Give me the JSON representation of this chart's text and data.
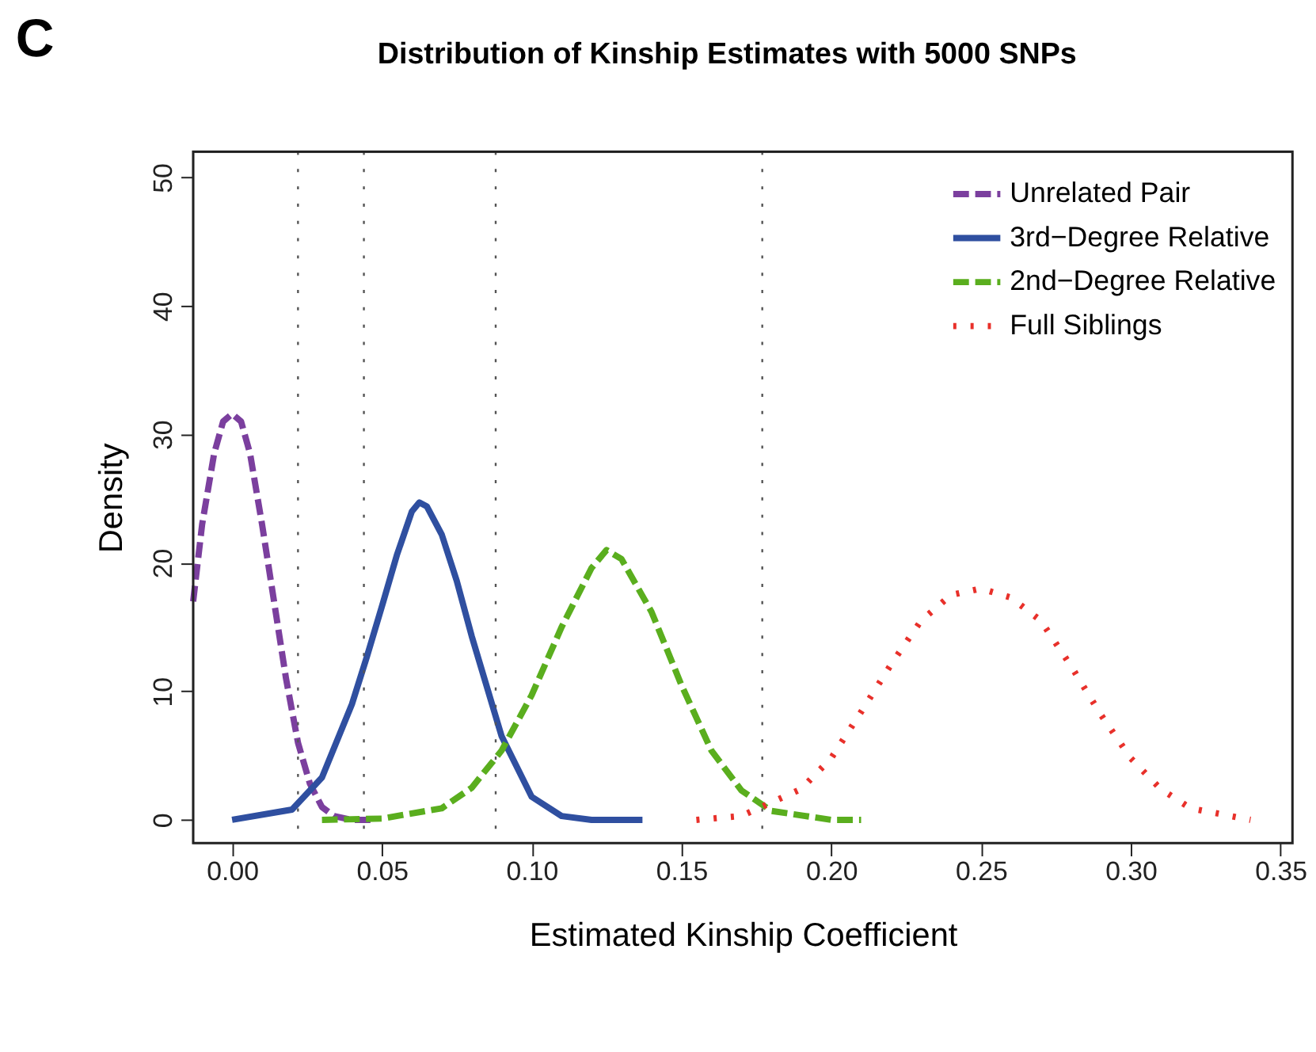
{
  "chart_data": {
    "type": "line",
    "title": "Distribution of Kinship Estimates with 5000 SNPs",
    "xlabel": "Estimated Kinship Coefficient",
    "ylabel": "Density",
    "annotations": [
      "C"
    ],
    "xlim": [
      -0.013,
      0.354
    ],
    "xticks": [
      {
        "value": 0,
        "label": "0.00"
      },
      0.05,
      {
        "value": 0.1,
        "label": "0.10"
      },
      0.15,
      {
        "value": 0.2,
        "label": "0.20"
      },
      0.25,
      {
        "value": 0.3,
        "label": "0.30"
      },
      0.35
    ],
    "ylim": [
      -1.8,
      52
    ],
    "yticks": [
      0,
      10,
      20,
      30,
      40,
      50
    ],
    "grid": false,
    "legend": "top right",
    "marker": "none",
    "ref_lines": [
      {
        "axis": "x",
        "value": 0.022,
        "color": "#555555",
        "line_style": "dotted"
      },
      {
        "axis": "x",
        "value": 0.044,
        "color": "#555555",
        "line_style": "dotted"
      },
      {
        "axis": "x",
        "value": 0.088,
        "color": "#555555",
        "line_style": "dotted"
      },
      {
        "axis": "x",
        "value": 0.177,
        "color": "#555555",
        "line_style": "dotted"
      }
    ],
    "series": [
      {
        "name": "Unrelated Pair",
        "color": "#7b3f9e",
        "line_style": "dashed",
        "x": [
          -0.013,
          -0.01,
          -0.006,
          -0.003,
          0,
          0.003,
          0.006,
          0.01,
          0.014,
          0.018,
          0.022,
          0.026,
          0.03,
          0.034,
          0.04,
          0.048
        ],
        "values": [
          17,
          23,
          28.5,
          31,
          31.6,
          31,
          28.5,
          23,
          17,
          11,
          6,
          2.8,
          1,
          0.3,
          0,
          0
        ]
      },
      {
        "name": "3rd−Degree Relative",
        "color": "#2f4fa0",
        "line_style": "solid",
        "x": [
          0,
          0.02,
          0.03,
          0.04,
          0.045,
          0.05,
          0.055,
          0.06,
          0.0625,
          0.065,
          0.07,
          0.075,
          0.08,
          0.09,
          0.1,
          0.11,
          0.12,
          0.137
        ],
        "values": [
          0,
          0.8,
          3.3,
          9,
          12.7,
          16.6,
          20.6,
          24,
          24.7,
          24.4,
          22.2,
          18.6,
          14.3,
          6.5,
          1.8,
          0.3,
          0,
          0
        ]
      },
      {
        "name": "2nd−Degree Relative",
        "color": "#5aae1e",
        "line_style": "dashed",
        "x": [
          0.03,
          0.05,
          0.07,
          0.08,
          0.09,
          0.1,
          0.11,
          0.12,
          0.125,
          0.13,
          0.14,
          0.15,
          0.16,
          0.17,
          0.18,
          0.2,
          0.21
        ],
        "values": [
          0,
          0.1,
          0.9,
          2.5,
          5.4,
          9.7,
          15,
          19.6,
          21,
          20.3,
          16.2,
          10.5,
          5.4,
          2.3,
          0.7,
          0,
          0
        ]
      },
      {
        "name": "Full Siblings",
        "color": "#e8302a",
        "line_style": "dotted",
        "x": [
          0.155,
          0.17,
          0.19,
          0.2,
          0.21,
          0.22,
          0.23,
          0.24,
          0.25,
          0.26,
          0.27,
          0.28,
          0.29,
          0.3,
          0.31,
          0.32,
          0.34
        ],
        "values": [
          0,
          0.3,
          2.4,
          4.8,
          8.4,
          12.1,
          15.5,
          17.5,
          18,
          17.3,
          15.5,
          12,
          8.2,
          4.8,
          2.4,
          0.9,
          0
        ]
      }
    ]
  }
}
